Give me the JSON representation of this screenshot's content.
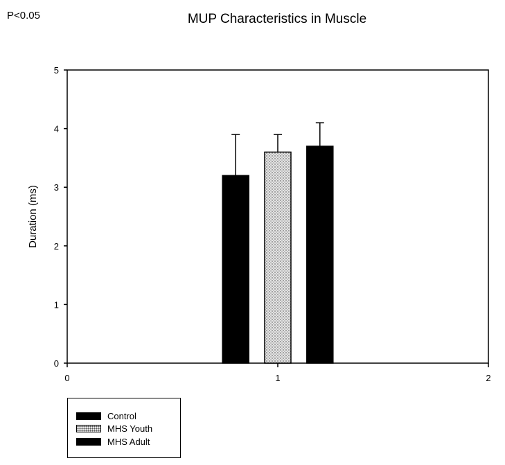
{
  "corner_note": "P<0.05",
  "chart_data": {
    "type": "bar",
    "title": "MUP Characteristics in Muscle",
    "xlabel": "",
    "ylabel": "Duration (ms)",
    "xlim": [
      0,
      2
    ],
    "ylim": [
      0,
      5
    ],
    "x_ticks": [
      "0",
      "1",
      "2"
    ],
    "y_ticks": [
      "0",
      "1",
      "2",
      "3",
      "4",
      "5"
    ],
    "categories": [
      "1"
    ],
    "series": [
      {
        "name": "Control",
        "x": 0.8,
        "value": 3.2,
        "error": 0.7,
        "fill": "solid",
        "color": "#000000"
      },
      {
        "name": "MHS Youth",
        "x": 1.0,
        "value": 3.6,
        "error": 0.3,
        "fill": "stipple",
        "color": "#d9d9d9"
      },
      {
        "name": "MHS Adult",
        "x": 1.2,
        "value": 3.7,
        "error": 0.4,
        "fill": "solid",
        "color": "#000000"
      }
    ],
    "bar_width": 0.125,
    "legend_position": "bottom-left",
    "grid": false
  }
}
